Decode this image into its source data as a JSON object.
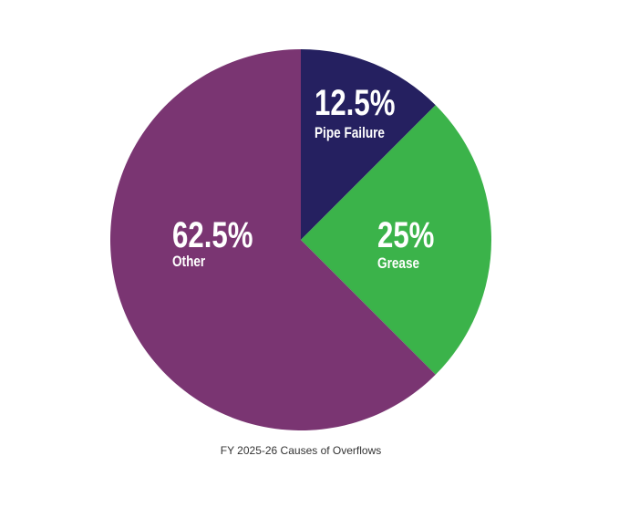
{
  "chart_data": {
    "type": "pie",
    "title": "FY 2025-26 Causes of Overflows",
    "categories": [
      "Pipe Failure",
      "Grease",
      "Other"
    ],
    "values": [
      12.5,
      25,
      62.5
    ],
    "value_labels": [
      "12.5%",
      "25%",
      "62.5%"
    ],
    "colors": [
      "#252060",
      "#3bb34a",
      "#7a3572"
    ]
  }
}
